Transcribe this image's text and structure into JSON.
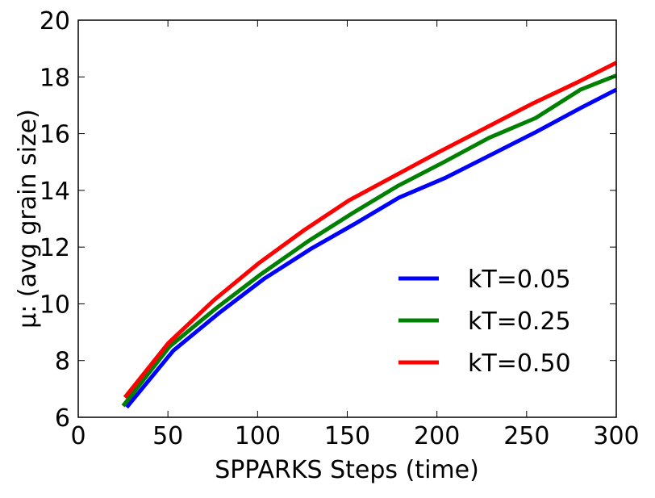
{
  "chart_data": {
    "type": "line",
    "title": "",
    "xlabel": "SPPARKS Steps (time)",
    "ylabel": "μ: (avg grain size)",
    "xlim": [
      0,
      300
    ],
    "ylim": [
      6,
      20
    ],
    "xticks": [
      0,
      50,
      100,
      150,
      200,
      250,
      300
    ],
    "yticks": [
      6,
      8,
      10,
      12,
      14,
      16,
      18,
      20
    ],
    "grid": false,
    "legend_placement": "lower-right",
    "series": [
      {
        "name": "kT=0.05",
        "color": "#0000ff",
        "x": [
          27,
          53,
          79,
          104,
          130,
          155,
          179,
          205,
          230,
          255,
          280,
          300
        ],
        "y": [
          6.35,
          8.35,
          9.7,
          10.9,
          11.95,
          12.85,
          13.75,
          14.45,
          15.25,
          16.05,
          16.9,
          17.55
        ]
      },
      {
        "name": "kT=0.25",
        "color": "#008000",
        "x": [
          25,
          51,
          77,
          102,
          128,
          153,
          178,
          204,
          229,
          255,
          280,
          300
        ],
        "y": [
          6.4,
          8.5,
          9.85,
          11.05,
          12.2,
          13.2,
          14.15,
          15.0,
          15.85,
          16.55,
          17.55,
          18.05
        ]
      },
      {
        "name": "kT=0.50",
        "color": "#ff0000",
        "x": [
          26,
          50,
          76,
          101,
          126,
          151,
          176,
          201,
          227,
          253,
          278,
          300
        ],
        "y": [
          6.7,
          8.6,
          10.15,
          11.45,
          12.6,
          13.65,
          14.5,
          15.35,
          16.2,
          17.05,
          17.8,
          18.5
        ]
      }
    ]
  }
}
